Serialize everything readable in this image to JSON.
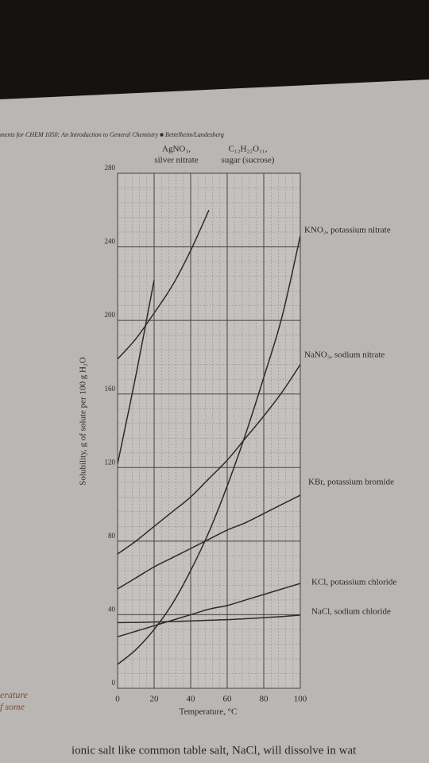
{
  "header": "ments for CHEM 1050: An Introduction to General Chemistry ■ Bettelheim/Landesberg",
  "margin_text": [
    "erature",
    "f some"
  ],
  "footer_text": "ionic salt like common table salt, NaCl, will dissolve in wat",
  "chart_data": {
    "type": "line",
    "x_label": "Temperature, °C",
    "y_label": "Solubility, g of solute per 100 g H₂O",
    "x": [
      0,
      10,
      20,
      30,
      40,
      50,
      60,
      70,
      80,
      90,
      100
    ],
    "xlim": [
      0,
      100
    ],
    "xticks": [
      0,
      20,
      40,
      60,
      80,
      100
    ],
    "ylim": [
      0,
      280
    ],
    "yticks": [
      0,
      40,
      80,
      120,
      160,
      200,
      240,
      280
    ],
    "grid": true,
    "minor_grid": true,
    "series": [
      {
        "label_lines": [
          "AgNO₃,",
          "silver nitrate"
        ],
        "color": "#2b2b2b",
        "values": [
          122,
          170,
          222,
          null,
          null,
          null,
          null,
          null,
          null,
          null,
          null
        ]
      },
      {
        "label_lines": [
          "C₁₂H₂₂O₁₁,",
          "sugar (sucrose)"
        ],
        "color": "#2b2b2b",
        "values": [
          179,
          190,
          204,
          219,
          238,
          260,
          null,
          null,
          null,
          null,
          null
        ]
      },
      {
        "label_lines": [
          "KNO₃, potassium nitrate"
        ],
        "color": "#2b2b2b",
        "values": [
          13,
          21,
          32,
          46,
          64,
          85,
          110,
          138,
          169,
          202,
          246
        ]
      },
      {
        "label_lines": [
          "NaNO₃, sodium nitrate"
        ],
        "color": "#2b2b2b",
        "values": [
          73,
          80,
          88,
          96,
          104,
          114,
          124,
          136,
          148,
          161,
          176
        ]
      },
      {
        "label_lines": [
          "KBr, potassium bromide"
        ],
        "color": "#2b2b2b",
        "values": [
          54,
          60,
          66,
          71,
          76,
          81,
          86,
          90,
          95,
          100,
          105
        ]
      },
      {
        "label_lines": [
          "KCl, potassium chloride"
        ],
        "color": "#2b2b2b",
        "values": [
          28,
          31,
          34,
          37,
          40,
          43,
          45,
          48,
          51,
          54,
          57
        ]
      },
      {
        "label_lines": [
          "NaCl, sodium chloride"
        ],
        "color": "#2b2b2b",
        "values": [
          35.7,
          35.8,
          36,
          36.3,
          36.6,
          37,
          37.3,
          37.8,
          38.4,
          39,
          39.8
        ]
      }
    ]
  }
}
